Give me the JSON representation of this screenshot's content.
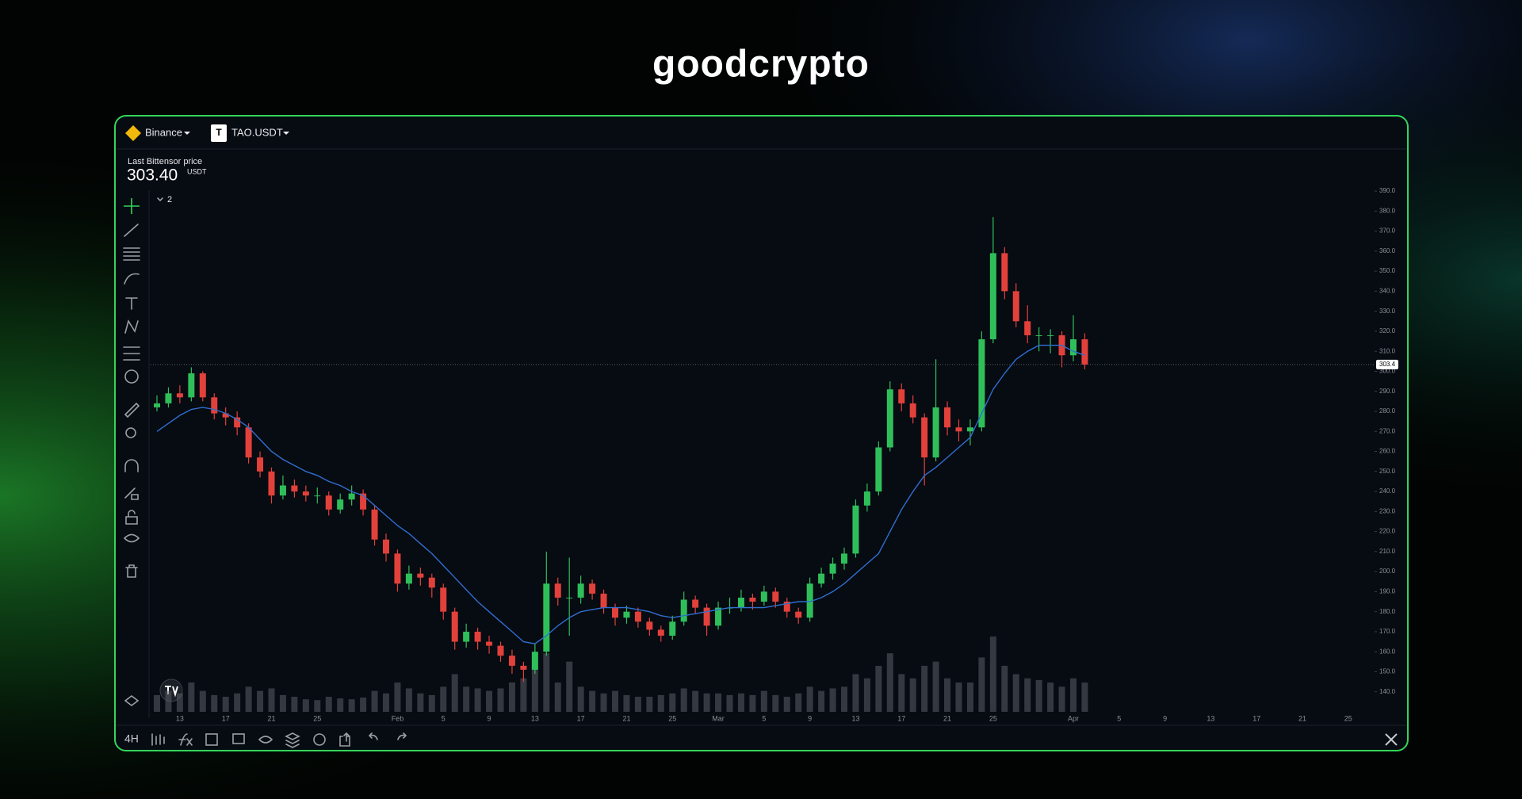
{
  "header": {
    "brand": "goodcrypto"
  },
  "toolbar": {
    "exchange": "Binance",
    "pair_icon": "T",
    "pair": "TAO.USDT",
    "timeframe": "4H"
  },
  "price_box": {
    "label": "Last Bittensor price",
    "price": "303.40",
    "unit": "USDT"
  },
  "indicators_toggle": "2",
  "chart_data": {
    "type": "candlestick",
    "categories": [
      null,
      null,
      "13",
      null,
      null,
      null,
      "17",
      null,
      null,
      null,
      "21",
      null,
      null,
      null,
      "25",
      null,
      null,
      null,
      null,
      null,
      null,
      "Feb",
      null,
      null,
      null,
      "5",
      null,
      null,
      null,
      "9",
      null,
      null,
      null,
      "13",
      null,
      null,
      null,
      "17",
      null,
      null,
      null,
      "21",
      null,
      null,
      null,
      "25",
      null,
      null,
      null,
      "Mar",
      null,
      null,
      null,
      "5",
      null,
      null,
      null,
      "9",
      null,
      null,
      null,
      "13",
      null,
      null,
      null,
      "17",
      null,
      null,
      null,
      "21",
      null,
      null,
      null,
      "25",
      null,
      null,
      null,
      null,
      null,
      null,
      "Apr",
      null,
      null,
      null,
      "5",
      null,
      null,
      null,
      "9",
      null,
      null,
      null,
      "13",
      null,
      null,
      null,
      "17",
      null,
      null,
      null,
      "21",
      null,
      null,
      null,
      "25",
      null,
      null,
      null,
      null
    ],
    "open": [
      282,
      284,
      289,
      287,
      299,
      287,
      279,
      277,
      272,
      257,
      250,
      238,
      243,
      240,
      238,
      238,
      231,
      236,
      239,
      231,
      216,
      209,
      194,
      199,
      197,
      192,
      180,
      165,
      170,
      165,
      163,
      158,
      153,
      151,
      160,
      194,
      187,
      187,
      194,
      189,
      182,
      177,
      180,
      175,
      171,
      168,
      175,
      186,
      182,
      173,
      182,
      182,
      187,
      185,
      190,
      185,
      180,
      177,
      194,
      199,
      204,
      209,
      233,
      240,
      262,
      291,
      284,
      277,
      257,
      282,
      272,
      270,
      272,
      316,
      359,
      340,
      325,
      318,
      318,
      318,
      308,
      316,
      null,
      null,
      null,
      null,
      null,
      null,
      null,
      null,
      null,
      null,
      null,
      null,
      null,
      null,
      null,
      null,
      null,
      null,
      null,
      null,
      null,
      null,
      null,
      null,
      null,
      null,
      null
    ],
    "high": [
      288,
      292,
      293,
      302,
      300,
      289,
      282,
      280,
      274,
      260,
      252,
      248,
      246,
      243,
      242,
      240,
      239,
      243,
      241,
      233,
      219,
      211,
      203,
      202,
      199,
      194,
      182,
      174,
      172,
      168,
      165,
      161,
      155,
      164,
      210,
      197,
      207,
      198,
      196,
      191,
      184,
      183,
      182,
      177,
      173,
      178,
      190,
      188,
      184,
      185,
      187,
      191,
      189,
      193,
      192,
      187,
      182,
      197,
      202,
      207,
      212,
      236,
      244,
      265,
      295,
      294,
      288,
      279,
      306,
      285,
      276,
      276,
      320,
      377,
      362,
      344,
      333,
      322,
      321,
      320,
      328,
      319,
      null,
      null,
      null,
      null,
      null,
      null,
      null,
      null,
      null,
      null,
      null,
      null,
      null,
      null,
      null,
      null,
      null,
      null,
      null,
      null,
      null,
      null,
      null,
      null,
      null,
      null,
      null
    ],
    "low": [
      280,
      282,
      284,
      285,
      285,
      276,
      273,
      268,
      254,
      247,
      234,
      236,
      237,
      235,
      234,
      228,
      229,
      233,
      228,
      213,
      205,
      190,
      191,
      193,
      187,
      176,
      161,
      162,
      161,
      159,
      155,
      149,
      145,
      149,
      158,
      183,
      168,
      184,
      186,
      179,
      173,
      174,
      172,
      168,
      165,
      166,
      173,
      179,
      168,
      171,
      179,
      180,
      181,
      183,
      182,
      177,
      174,
      175,
      192,
      196,
      201,
      207,
      230,
      238,
      260,
      280,
      274,
      243,
      255,
      268,
      265,
      263,
      270,
      314,
      336,
      322,
      314,
      310,
      309,
      302,
      305,
      301,
      null,
      null,
      null,
      null,
      null,
      null,
      null,
      null,
      null,
      null,
      null,
      null,
      null,
      null,
      null,
      null,
      null,
      null,
      null,
      null,
      null,
      null,
      null,
      null,
      null,
      null,
      null
    ],
    "close": [
      284,
      289,
      287,
      299,
      287,
      279,
      277,
      272,
      257,
      250,
      238,
      243,
      240,
      238,
      238,
      231,
      236,
      239,
      231,
      216,
      209,
      194,
      199,
      197,
      192,
      180,
      165,
      170,
      165,
      163,
      158,
      153,
      151,
      160,
      194,
      187,
      187,
      194,
      189,
      182,
      177,
      180,
      175,
      171,
      168,
      175,
      186,
      182,
      173,
      182,
      182,
      187,
      185,
      190,
      185,
      180,
      177,
      194,
      199,
      204,
      209,
      233,
      240,
      262,
      291,
      284,
      277,
      257,
      282,
      272,
      270,
      272,
      316,
      359,
      340,
      325,
      318,
      318,
      318,
      308,
      316,
      303.4,
      null,
      null,
      null,
      null,
      null,
      null,
      null,
      null,
      null,
      null,
      null,
      null,
      null,
      null,
      null,
      null,
      null,
      null,
      null,
      null,
      null,
      null,
      null,
      null,
      null,
      null,
      null
    ],
    "moving_average": [
      270,
      274,
      278,
      281,
      282,
      281,
      279,
      276,
      272,
      266,
      260,
      256,
      253,
      250,
      248,
      245,
      243,
      240,
      238,
      233,
      228,
      223,
      219,
      214,
      209,
      203,
      197,
      191,
      185,
      180,
      175,
      170,
      165,
      164,
      168,
      173,
      177,
      180,
      181,
      182,
      182,
      182,
      181,
      180,
      178,
      177,
      178,
      179,
      180,
      181,
      182,
      182,
      182,
      182,
      183,
      184,
      185,
      185,
      187,
      190,
      194,
      199,
      204,
      209,
      220,
      231,
      240,
      248,
      252,
      257,
      262,
      267,
      279,
      291,
      299,
      306,
      310,
      313,
      313,
      313,
      310,
      308,
      null,
      null,
      null,
      null,
      null,
      null,
      null,
      null,
      null,
      null,
      null,
      null,
      null,
      null,
      null,
      null,
      null,
      null,
      null,
      null,
      null,
      null,
      null,
      null,
      null,
      null,
      null
    ],
    "volume": [
      20,
      25,
      22,
      35,
      25,
      20,
      18,
      22,
      30,
      25,
      28,
      20,
      18,
      15,
      14,
      18,
      16,
      15,
      17,
      25,
      22,
      35,
      28,
      22,
      20,
      30,
      45,
      30,
      28,
      25,
      28,
      35,
      40,
      55,
      70,
      35,
      60,
      30,
      25,
      22,
      25,
      20,
      18,
      18,
      20,
      22,
      28,
      25,
      22,
      22,
      20,
      22,
      20,
      25,
      20,
      18,
      22,
      30,
      25,
      28,
      30,
      45,
      40,
      55,
      70,
      45,
      40,
      55,
      60,
      40,
      35,
      35,
      65,
      90,
      55,
      45,
      40,
      38,
      35,
      30,
      40,
      35,
      null,
      null,
      null,
      null,
      null,
      null,
      null,
      null,
      null,
      null,
      null,
      null,
      null,
      null,
      null,
      null,
      null,
      null,
      null,
      null,
      null,
      null,
      null,
      null,
      null,
      null,
      null
    ],
    "up_color": "#2fbf5a",
    "down_color": "#e2413b",
    "ma_color": "#2f6fd0",
    "volume_color": "#5a5f66",
    "last_price": 303.4,
    "ylim": [
      130,
      392
    ],
    "yticks": [
      {
        "value": 390,
        "label": "390.0"
      },
      {
        "value": 380,
        "label": "380.0"
      },
      {
        "value": 370,
        "label": "370.0"
      },
      {
        "value": 360,
        "label": "360.0"
      },
      {
        "value": 350,
        "label": "350.0"
      },
      {
        "value": 340,
        "label": "340.0"
      },
      {
        "value": 330,
        "label": "330.0"
      },
      {
        "value": 320,
        "label": "320.0"
      },
      {
        "value": 310,
        "label": "310.0"
      },
      {
        "value": 300,
        "label": "300.0"
      },
      {
        "value": 290,
        "label": "290.0"
      },
      {
        "value": 280,
        "label": "280.0"
      },
      {
        "value": 270,
        "label": "270.0"
      },
      {
        "value": 260,
        "label": "260.0"
      },
      {
        "value": 250,
        "label": "250.0"
      },
      {
        "value": 240,
        "label": "240.0"
      },
      {
        "value": 230,
        "label": "230.0"
      },
      {
        "value": 220,
        "label": "220.0"
      },
      {
        "value": 210,
        "label": "210.0"
      },
      {
        "value": 200,
        "label": "200.0"
      },
      {
        "value": 190,
        "label": "190.0"
      },
      {
        "value": 180,
        "label": "180.0"
      },
      {
        "value": 170,
        "label": "170.0"
      },
      {
        "value": 160,
        "label": "160.0"
      },
      {
        "value": 150,
        "label": "150.0"
      },
      {
        "value": 140,
        "label": "140.0"
      }
    ],
    "grid": false
  }
}
